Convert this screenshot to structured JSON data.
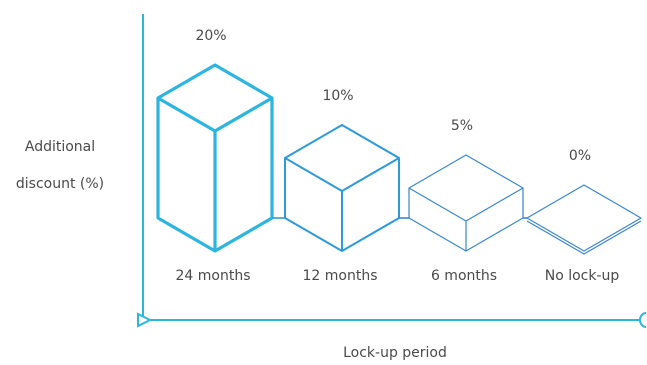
{
  "chart_data": {
    "type": "bar",
    "style": "isometric-cubes",
    "categories": [
      "24 months",
      "12 months",
      "6 months",
      "No lock-up"
    ],
    "values": [
      20,
      10,
      5,
      0
    ],
    "data_labels": [
      "20%",
      "10%",
      "5%",
      "0%"
    ],
    "value_unit": "%",
    "xlabel": "Lock-up period",
    "ylabel_lines": [
      "Additional",
      "discount (%)"
    ],
    "ylim": [
      0,
      20
    ],
    "grid": false,
    "legend": "none",
    "colors": {
      "axis": "#2cb5de",
      "bar_strong": "#2cb5de",
      "bar_mid": "#2e9ad8",
      "bar_light": "#3a86d0",
      "text": "#4a4a4a"
    }
  }
}
